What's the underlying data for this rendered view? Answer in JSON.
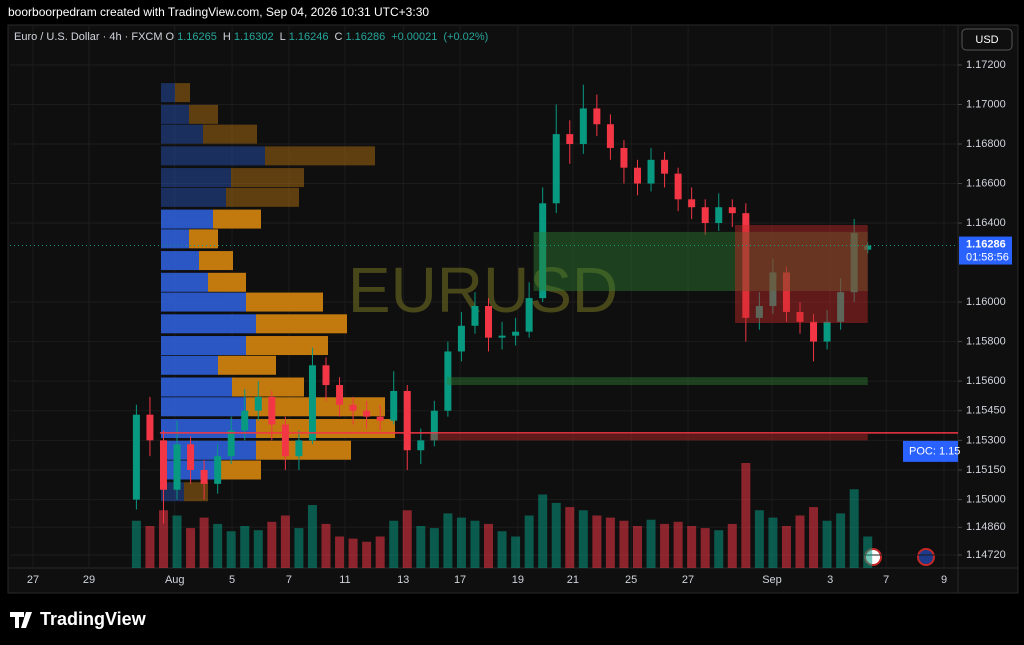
{
  "header": {
    "credit": "boorboorpedram created with TradingView.com, Sep 04, 2026 10:31 UTC+3:30",
    "logo": "TradingView"
  },
  "chart_data": {
    "type": "candlestick",
    "symbol": "EURUSD",
    "symbol_description": "Euro / U.S. Dollar · 4h · FXCM",
    "legend_keys": [
      "O",
      "H",
      "L",
      "C"
    ],
    "change": {
      "value": 0.00021,
      "label": "+0.00021"
    },
    "change_pct": {
      "value": 0.02,
      "label": "(+0.02%)"
    },
    "currency": "USD",
    "countdown": "01:58:56",
    "up_color": "#089981",
    "down_color": "#f23645",
    "grid": true,
    "xlim": [
      0,
      210
    ],
    "ylim": [
      1.14654,
      1.17377
    ],
    "xticks": [
      {
        "value": 5.1,
        "label": "27"
      },
      {
        "value": 17.5,
        "label": "29"
      },
      {
        "value": 36.5,
        "label": "Aug"
      },
      {
        "value": 49.2,
        "label": "5"
      },
      {
        "value": 61.8,
        "label": "7"
      },
      {
        "value": 74.2,
        "label": "11"
      },
      {
        "value": 87.1,
        "label": "13"
      },
      {
        "value": 99.7,
        "label": "17"
      },
      {
        "value": 112.5,
        "label": "19"
      },
      {
        "value": 124.7,
        "label": "21"
      },
      {
        "value": 137.6,
        "label": "25"
      },
      {
        "value": 150.2,
        "label": "27"
      },
      {
        "value": 168.8,
        "label": "Sep"
      },
      {
        "value": 181.7,
        "label": "3"
      },
      {
        "value": 194.1,
        "label": "7"
      },
      {
        "value": 206.9,
        "label": "9"
      }
    ],
    "yticks": [
      {
        "value": 1.172,
        "label": "1.17200"
      },
      {
        "value": 1.17,
        "label": "1.17000"
      },
      {
        "value": 1.168,
        "label": "1.16800"
      },
      {
        "value": 1.166,
        "label": "1.16600"
      },
      {
        "value": 1.164,
        "label": "1.16400"
      },
      {
        "value": 1.16,
        "label": "1.16000"
      },
      {
        "value": 1.158,
        "label": "1.15800"
      },
      {
        "value": 1.156,
        "label": "1.15600"
      },
      {
        "value": 1.1545,
        "label": "1.15450"
      },
      {
        "value": 1.153,
        "label": "1.15300"
      },
      {
        "value": 1.1515,
        "label": "1.15150"
      },
      {
        "value": 1.15,
        "label": "1.15000"
      },
      {
        "value": 1.1486,
        "label": "1.14860"
      },
      {
        "value": 1.1472,
        "label": "1.14720"
      }
    ],
    "candles": {
      "x": [
        28,
        31,
        34,
        37,
        40,
        43,
        46,
        49,
        52,
        55,
        58,
        61,
        64,
        67,
        70,
        73,
        76,
        79,
        82,
        85,
        88,
        91,
        94,
        97,
        100,
        103,
        106,
        109,
        112,
        115,
        118,
        121,
        124,
        127,
        130,
        133,
        136,
        139,
        142,
        145,
        148,
        151,
        154,
        157,
        160,
        163,
        166,
        169,
        172,
        175,
        178,
        181,
        184,
        187,
        190
      ],
      "open": [
        1.15,
        1.1543,
        1.153,
        1.1505,
        1.1528,
        1.1515,
        1.1508,
        1.1522,
        1.1535,
        1.1545,
        1.1552,
        1.1538,
        1.1522,
        1.153,
        1.1568,
        1.1558,
        1.1548,
        1.1545,
        1.1542,
        1.154,
        1.1555,
        1.1525,
        1.153,
        1.1545,
        1.1575,
        1.1588,
        1.1598,
        1.1582,
        1.1583,
        1.1585,
        1.1602,
        1.165,
        1.1685,
        1.168,
        1.1698,
        1.169,
        1.1678,
        1.1668,
        1.166,
        1.1672,
        1.1665,
        1.1652,
        1.1648,
        1.164,
        1.1648,
        1.1645,
        1.1592,
        1.1598,
        1.1615,
        1.1595,
        1.159,
        1.158,
        1.159,
        1.1605,
        1.16265
      ],
      "high": [
        1.1548,
        1.1552,
        1.1535,
        1.154,
        1.1532,
        1.152,
        1.1528,
        1.1542,
        1.1556,
        1.156,
        1.1555,
        1.1542,
        1.1535,
        1.1577,
        1.1572,
        1.1562,
        1.1552,
        1.155,
        1.1548,
        1.1565,
        1.1558,
        1.1536,
        1.155,
        1.158,
        1.1595,
        1.1605,
        1.1602,
        1.159,
        1.1592,
        1.161,
        1.1658,
        1.17,
        1.1692,
        1.171,
        1.1705,
        1.1695,
        1.1682,
        1.1672,
        1.1678,
        1.1676,
        1.1668,
        1.1658,
        1.1652,
        1.1655,
        1.1652,
        1.165,
        1.1605,
        1.1622,
        1.1618,
        1.16,
        1.1594,
        1.1596,
        1.1612,
        1.1642,
        1.16302
      ],
      "low": [
        1.1495,
        1.1522,
        1.1488,
        1.15,
        1.1508,
        1.15,
        1.1503,
        1.1518,
        1.153,
        1.154,
        1.153,
        1.1515,
        1.1515,
        1.1528,
        1.155,
        1.1542,
        1.1538,
        1.1536,
        1.1535,
        1.1538,
        1.1515,
        1.1518,
        1.1527,
        1.1542,
        1.157,
        1.1584,
        1.1575,
        1.1576,
        1.1578,
        1.1582,
        1.16,
        1.1645,
        1.167,
        1.1675,
        1.1684,
        1.1672,
        1.166,
        1.1654,
        1.1656,
        1.1658,
        1.1646,
        1.1642,
        1.1634,
        1.1636,
        1.1638,
        1.158,
        1.1586,
        1.1594,
        1.159,
        1.1584,
        1.157,
        1.1576,
        1.1586,
        1.16,
        1.16246
      ],
      "close": [
        1.1543,
        1.153,
        1.1505,
        1.1528,
        1.1515,
        1.1508,
        1.1522,
        1.1535,
        1.1545,
        1.1552,
        1.1538,
        1.1522,
        1.153,
        1.1568,
        1.1558,
        1.1548,
        1.1545,
        1.1542,
        1.154,
        1.1555,
        1.1525,
        1.153,
        1.1545,
        1.1575,
        1.1588,
        1.1598,
        1.1582,
        1.1583,
        1.1585,
        1.1602,
        1.165,
        1.1685,
        1.168,
        1.1698,
        1.169,
        1.1678,
        1.1668,
        1.166,
        1.1672,
        1.1665,
        1.1652,
        1.1648,
        1.164,
        1.1648,
        1.1645,
        1.1592,
        1.1598,
        1.1615,
        1.1595,
        1.159,
        1.158,
        1.159,
        1.1605,
        1.1635,
        1.16286
      ],
      "volume": [
        45,
        40,
        55,
        50,
        38,
        48,
        42,
        35,
        40,
        36,
        44,
        50,
        38,
        60,
        42,
        30,
        28,
        25,
        30,
        45,
        55,
        40,
        38,
        52,
        48,
        45,
        42,
        35,
        30,
        50,
        70,
        62,
        58,
        55,
        50,
        48,
        45,
        40,
        46,
        42,
        44,
        40,
        38,
        36,
        42,
        100,
        55,
        48,
        40,
        50,
        58,
        45,
        52,
        75,
        30
      ]
    },
    "profile": {
      "up_color": "#2d5fd8",
      "down_color": "#d6860f",
      "price": [
        1.1706,
        1.1695,
        1.1685,
        1.1674,
        1.1663,
        1.1653,
        1.1642,
        1.1632,
        1.1621,
        1.161,
        1.16,
        1.1589,
        1.1578,
        1.1568,
        1.1557,
        1.1547,
        1.1536,
        1.1525,
        1.1515,
        1.1504
      ],
      "up": [
        14,
        28,
        42,
        104,
        70,
        65,
        52,
        28,
        38,
        47,
        85,
        95,
        85,
        57,
        71,
        85,
        95,
        95,
        57,
        23
      ],
      "down": [
        15,
        29,
        54,
        110,
        73,
        73,
        48,
        29,
        34,
        38,
        77,
        91,
        82,
        58,
        72,
        139,
        139,
        95,
        43,
        24
      ],
      "in_value_area": [
        false,
        false,
        false,
        false,
        false,
        false,
        true,
        true,
        true,
        true,
        true,
        true,
        true,
        true,
        true,
        true,
        true,
        true,
        true,
        false
      ]
    },
    "zones": [
      {
        "top": 1.16355,
        "bottom": 1.16056,
        "x_start": 116,
        "x_end": 190,
        "color": "#2e7d32"
      },
      {
        "top": 1.1639,
        "bottom": 1.15894,
        "x_start": 160.6,
        "x_end": 190,
        "color": "#c62828"
      },
      {
        "top": 1.1562,
        "bottom": 1.1558,
        "x_start": 96.8,
        "x_end": 190,
        "color": "#2e7d32"
      },
      {
        "top": 1.15332,
        "bottom": 1.153,
        "x_start": 93,
        "x_end": 190,
        "color": "#c62828"
      }
    ],
    "poc": {
      "value": 1.15338,
      "label": "POC: 1.15",
      "x_start": 33.2,
      "color": "#f23645"
    }
  }
}
